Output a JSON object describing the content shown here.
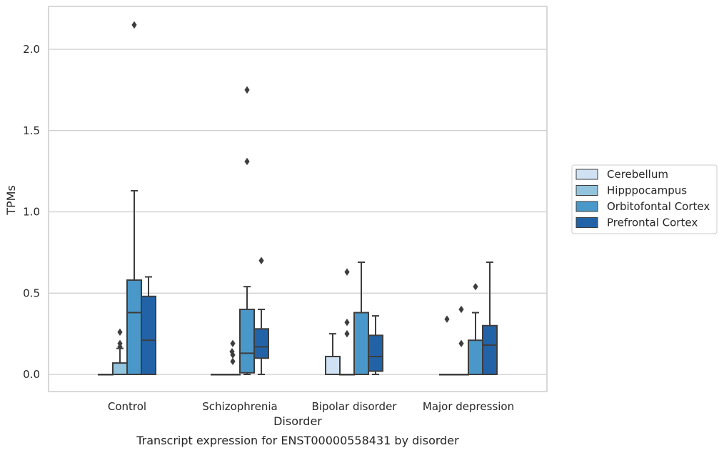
{
  "chart_data": {
    "type": "box",
    "title": "",
    "caption": "Transcript expression for ENST00000558431 by disorder",
    "xlabel": "Disorder",
    "ylabel": "TPMs",
    "ylim": [
      -0.1,
      2.27
    ],
    "yticks": [
      "0.0",
      "0.5",
      "1.0",
      "1.5",
      "2.0"
    ],
    "grid": "horizontal",
    "legend_position": "right",
    "categories": [
      "Control",
      "Schizophrenia",
      "Bipolar disorder",
      "Major depression"
    ],
    "series": [
      {
        "name": "Cerebellum",
        "color": "#cfe1f2",
        "boxes": [
          {
            "q1": 0,
            "median": 0,
            "q3": 0,
            "whisker_low": 0,
            "whisker_high": 0,
            "outliers": []
          },
          {
            "q1": 0,
            "median": 0,
            "q3": 0,
            "whisker_low": 0,
            "whisker_high": 0,
            "outliers": []
          },
          {
            "q1": 0,
            "median": 0,
            "q3": 0.11,
            "whisker_low": 0,
            "whisker_high": 0.25,
            "outliers": []
          },
          {
            "q1": 0,
            "median": 0,
            "q3": 0,
            "whisker_low": 0,
            "whisker_high": 0,
            "outliers": [
              0.34
            ]
          }
        ]
      },
      {
        "name": "Hipppocampus",
        "color": "#93c4de",
        "boxes": [
          {
            "q1": 0,
            "median": 0,
            "q3": 0.07,
            "whisker_low": 0,
            "whisker_high": 0.16,
            "outliers": [
              0.17,
              0.19,
              0.26
            ]
          },
          {
            "q1": 0,
            "median": 0,
            "q3": 0,
            "whisker_low": 0,
            "whisker_high": 0,
            "outliers": [
              0.08,
              0.12,
              0.19
            ]
          },
          {
            "q1": 0,
            "median": 0,
            "q3": 0,
            "whisker_low": 0,
            "whisker_high": 0,
            "outliers": [
              0.25,
              0.32,
              0.63
            ]
          },
          {
            "q1": 0,
            "median": 0,
            "q3": 0,
            "whisker_low": 0,
            "whisker_high": 0,
            "outliers": [
              0.19,
              0.4
            ]
          }
        ]
      },
      {
        "name": "Orbitofontal Cortex",
        "color": "#4a98c9",
        "boxes": [
          {
            "q1": 0,
            "median": 0.38,
            "q3": 0.58,
            "whisker_low": 0,
            "whisker_high": 1.13,
            "outliers": [
              2.15
            ]
          },
          {
            "q1": 0.01,
            "median": 0.13,
            "q3": 0.4,
            "whisker_low": 0,
            "whisker_high": 0.54,
            "outliers": [
              1.31,
              1.75
            ]
          },
          {
            "q1": 0,
            "median": 0,
            "q3": 0.38,
            "whisker_low": 0,
            "whisker_high": 0.69,
            "outliers": []
          },
          {
            "q1": 0,
            "median": 0,
            "q3": 0.21,
            "whisker_low": 0,
            "whisker_high": 0.38,
            "outliers": [
              0.54
            ]
          }
        ]
      },
      {
        "name": "Prefrontal Cortex",
        "color": "#2263a8",
        "boxes": [
          {
            "q1": 0,
            "median": 0.21,
            "q3": 0.48,
            "whisker_low": 0,
            "whisker_high": 0.6,
            "outliers": []
          },
          {
            "q1": 0.1,
            "median": 0.17,
            "q3": 0.28,
            "whisker_low": 0,
            "whisker_high": 0.4,
            "outliers": [
              0.7
            ]
          },
          {
            "q1": 0.02,
            "median": 0.11,
            "q3": 0.24,
            "whisker_low": 0,
            "whisker_high": 0.36,
            "outliers": []
          },
          {
            "q1": 0,
            "median": 0.18,
            "q3": 0.3,
            "whisker_low": 0,
            "whisker_high": 0.69,
            "outliers": []
          }
        ]
      }
    ],
    "extra_outliers": [
      {
        "category": 1,
        "x_offset": -0.5,
        "value": 0.14
      }
    ]
  }
}
